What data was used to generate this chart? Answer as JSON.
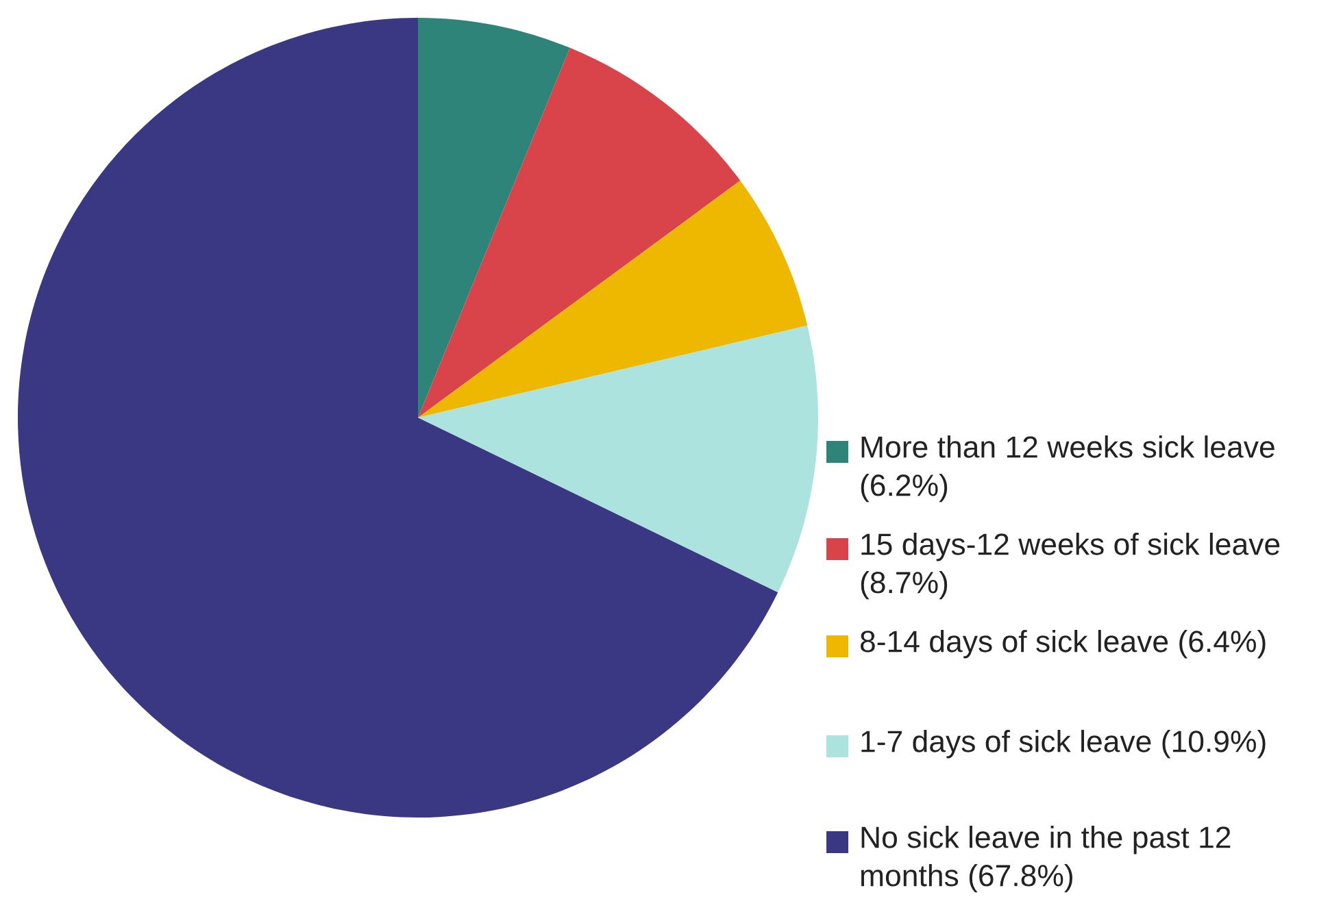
{
  "chart_data": {
    "type": "pie",
    "categories": [
      "More than 12 weeks sick leave (6.2%)",
      "15 days-12 weeks of sick leave (8.7%)",
      "8-14 days of sick leave (6.4%)",
      "1-7 days of sick leave (10.9%)",
      "No sick leave in the past 12 months (67.8%)"
    ],
    "values": [
      6.2,
      8.7,
      6.4,
      10.9,
      67.8
    ],
    "colors": [
      "#2e8478",
      "#d9444b",
      "#efb800",
      "#ade3de",
      "#3a3882"
    ],
    "legend": "bottom right"
  }
}
